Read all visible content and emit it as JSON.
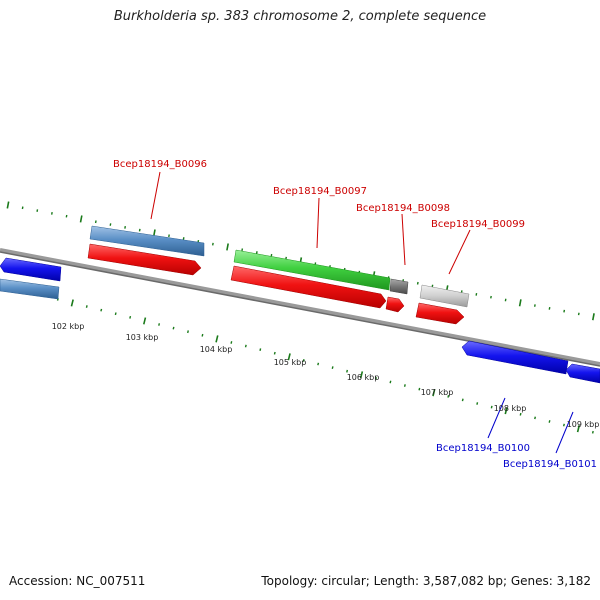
{
  "title": "Burkholderia sp. 383 chromosome 2, complete sequence",
  "footer": {
    "accession": "Accession: NC_007511",
    "summary": "Topology: circular; Length: 3,587,082 bp; Genes: 3,182"
  },
  "ticks": [
    {
      "label": "102 kbp"
    },
    {
      "label": "103 kbp"
    },
    {
      "label": "104 kbp"
    },
    {
      "label": "105 kbp"
    },
    {
      "label": "106 kbp"
    },
    {
      "label": "107 kbp"
    },
    {
      "label": "108 kbp"
    },
    {
      "label": "109 kbp"
    }
  ],
  "gene_labels": [
    {
      "label": "Bcep18194_B0096",
      "color": "#cc0000"
    },
    {
      "label": "Bcep18194_B0097",
      "color": "#cc0000"
    },
    {
      "label": "Bcep18194_B0098",
      "color": "#cc0000"
    },
    {
      "label": "Bcep18194_B0099",
      "color": "#cc0000"
    },
    {
      "label": "Bcep18194_B0100",
      "color": "#0000cc"
    },
    {
      "label": "Bcep18194_B0101",
      "color": "#0000cc"
    }
  ],
  "colors": {
    "backbone": "#8a8a8a",
    "tick": "#1a7a1a",
    "red_gene": "#ee1111",
    "blue_gene": "#1a1aee",
    "steel_gene": "#4f86c0",
    "green_gene": "#3ccc3c",
    "grey_gene": "#c8c8c8",
    "dark_grey_gene": "#777777"
  }
}
